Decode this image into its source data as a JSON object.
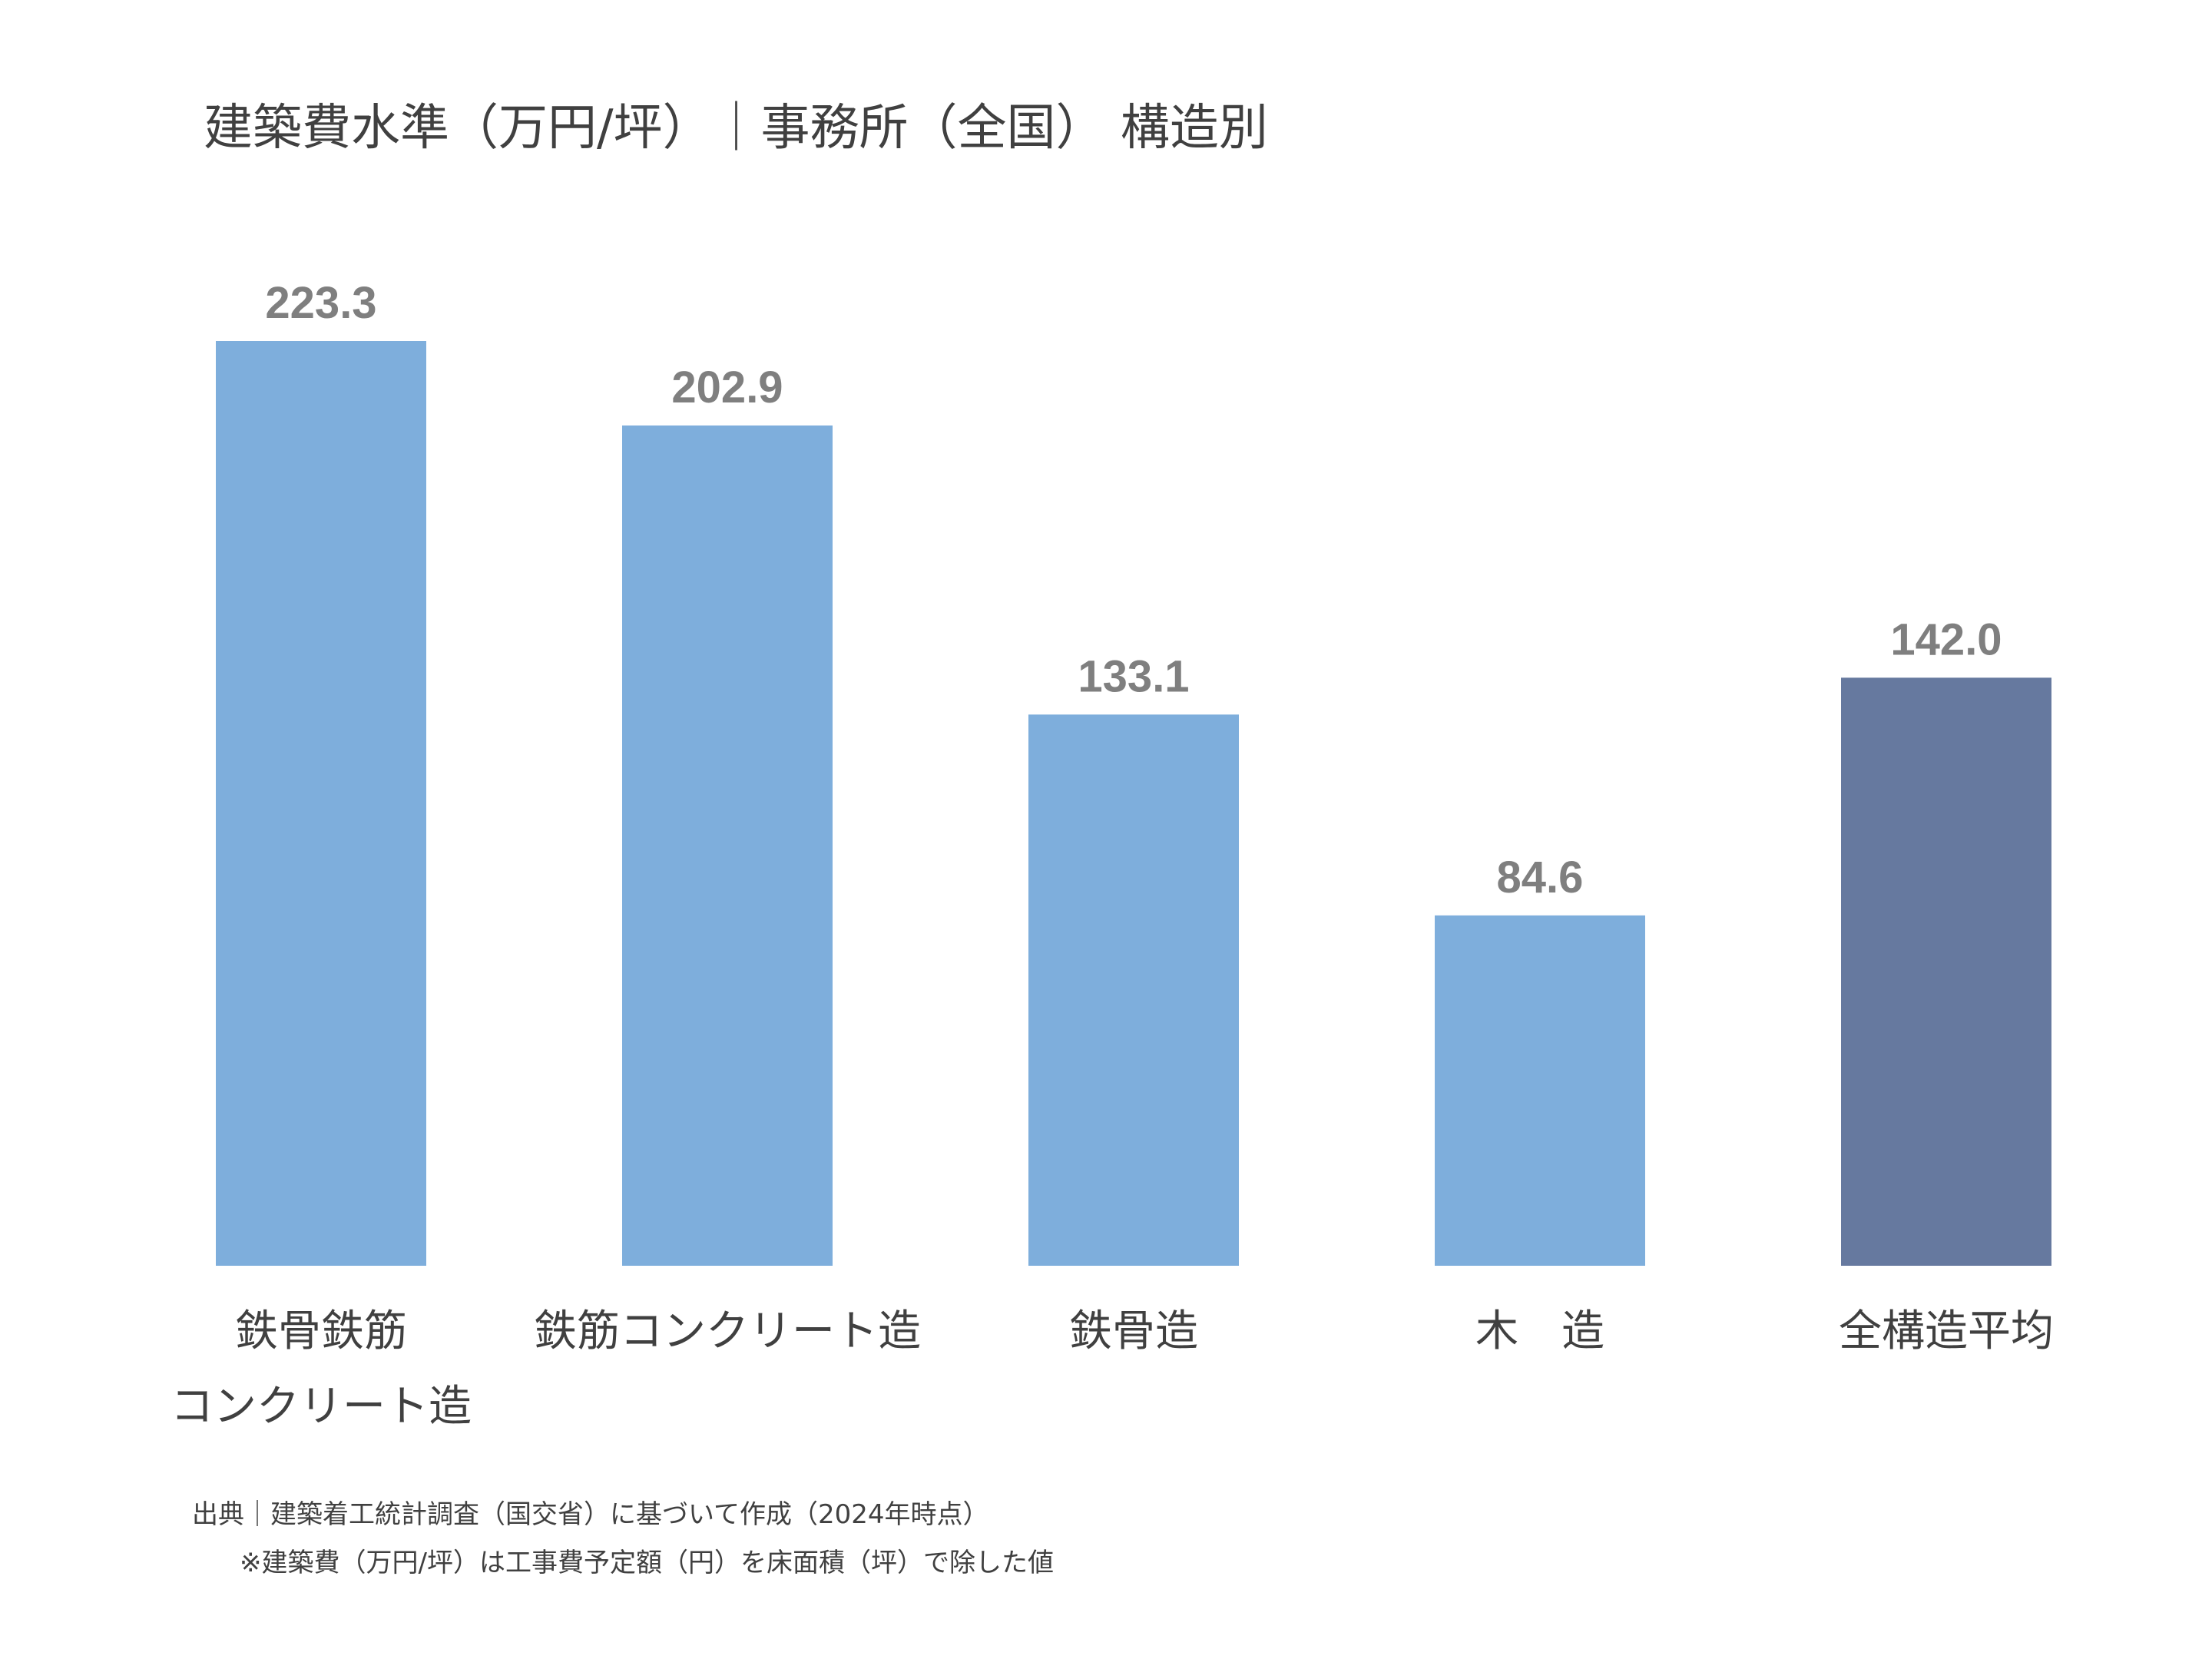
{
  "chart_data": {
    "type": "bar",
    "title": "建築費水準（万円/坪）｜事務所（全国） 構造別",
    "categories": [
      [
        "鉄骨鉄筋",
        "コンクリート造"
      ],
      [
        "鉄筋コンクリート造"
      ],
      [
        "鉄骨造"
      ],
      [
        "木　造"
      ],
      [
        "全構造平均"
      ]
    ],
    "values": [
      223.3,
      202.9,
      133.1,
      84.6,
      142.0
    ],
    "value_labels": [
      "223.3",
      "202.9",
      "133.1",
      "84.6",
      "142.0"
    ],
    "highlight_index": 4,
    "ylim": [
      0,
      223.3
    ],
    "xlabel": "",
    "ylabel": "",
    "grid": false,
    "legend": "none"
  },
  "colors": {
    "bar": "#7eaedc",
    "bar_highlight": "#66799f",
    "value_text": "#7f7f7f",
    "text": "#404040"
  },
  "footnotes": {
    "source": "出典｜建築着工統計調査（国交省）に基づいて作成（2024年時点）",
    "remark": "※建築費（万円/坪）は工事費予定額（円）を床面積（坪）で除した値"
  }
}
